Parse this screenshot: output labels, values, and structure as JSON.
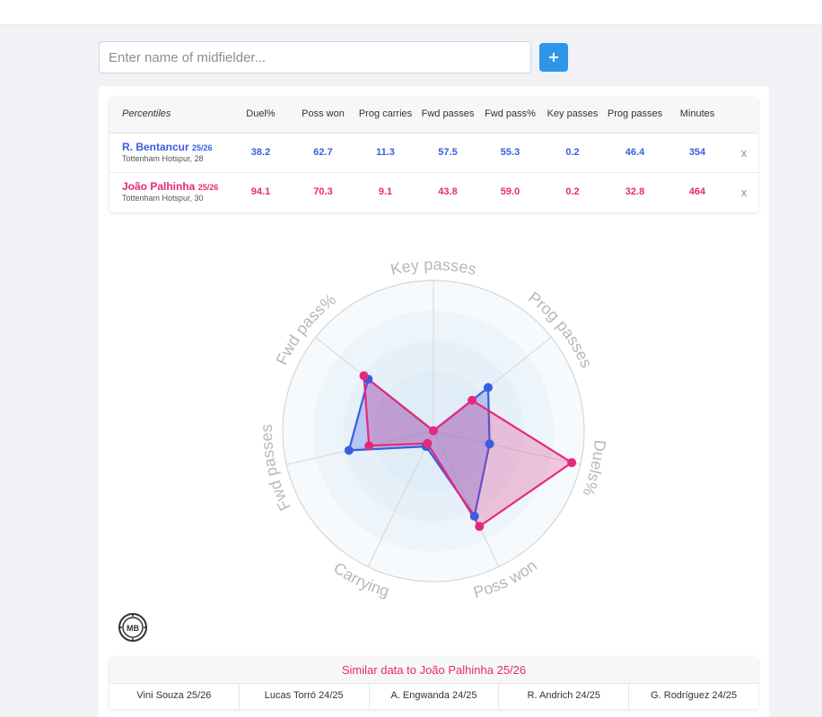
{
  "search": {
    "placeholder": "Enter name of midfielder...",
    "value": "",
    "add_label": "+"
  },
  "table": {
    "headers": [
      "Percentiles",
      "Duel%",
      "Poss won",
      "Prog carries",
      "Fwd passes",
      "Fwd pass%",
      "Key passes",
      "Prog passes",
      "Minutes"
    ],
    "rows": [
      {
        "name": "R. Bentancur",
        "season": "25/26",
        "team": "Tottenham Hotspur, 28",
        "values": [
          "38.2",
          "62.7",
          "11.3",
          "57.5",
          "55.3",
          "0.2",
          "46.4",
          "354"
        ],
        "remove": "x",
        "color": "#3a5ddf"
      },
      {
        "name": "João Palhinha",
        "season": "25/26",
        "team": "Tottenham Hotspur, 30",
        "values": [
          "94.1",
          "70.3",
          "9.1",
          "43.8",
          "59.0",
          "0.2",
          "32.8",
          "464"
        ],
        "remove": "x",
        "color": "#e6287a"
      }
    ]
  },
  "radar": {
    "axes": [
      "Key passes",
      "Prog passes",
      "Duels%",
      "Poss won",
      "Carrying",
      "Fwd passes",
      "Fwd pass%"
    ],
    "colors": {
      "grid": "#d6d6d6",
      "ring_fill": "#eef5fb",
      "label": "#b8b8b8"
    }
  },
  "chart_data": {
    "type": "radar",
    "categories": [
      "Key passes",
      "Prog passes",
      "Duels%",
      "Poss won",
      "Carrying",
      "Fwd passes",
      "Fwd pass%"
    ],
    "rlim": [
      0,
      100
    ],
    "series": [
      {
        "name": "R. Bentancur 25/26",
        "color": "#3a5ddf",
        "values": [
          0.2,
          46.4,
          38.2,
          62.7,
          11.3,
          57.5,
          55.3
        ]
      },
      {
        "name": "João Palhinha 25/26",
        "color": "#e6287a",
        "values": [
          0.2,
          32.8,
          94.1,
          70.3,
          9.1,
          43.8,
          59.0
        ]
      }
    ]
  },
  "similar": {
    "title": "Similar data to João Palhinha 25/26",
    "items": [
      "Vini Souza 25/26",
      "Lucas Torró 24/25",
      "A. Engwanda 24/25",
      "R. Andrich 24/25",
      "G. Rodríguez 24/25"
    ]
  },
  "logo": {
    "text": "MB"
  }
}
